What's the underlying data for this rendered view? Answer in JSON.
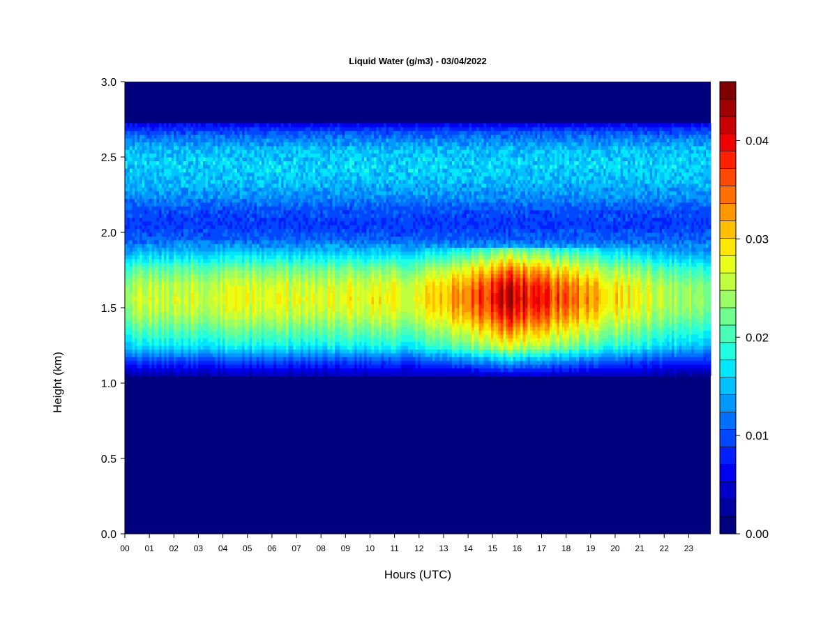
{
  "chart_data": {
    "type": "heatmap",
    "title": "Liquid Water (g/m3) - 03/04/2022",
    "xlabel": "Hours (UTC)",
    "ylabel": "Height (km)",
    "xlim": [
      0,
      23.9
    ],
    "ylim": [
      0,
      3
    ],
    "x_ticks": [
      "00",
      "01",
      "02",
      "03",
      "04",
      "05",
      "06",
      "07",
      "08",
      "09",
      "10",
      "11",
      "12",
      "13",
      "14",
      "15",
      "16",
      "17",
      "18",
      "19",
      "20",
      "21",
      "22",
      "23"
    ],
    "y_ticks": [
      "0.0",
      "0.5",
      "1.0",
      "1.5",
      "2.0",
      "2.5",
      "3.0"
    ],
    "colorbar": {
      "min": 0.0,
      "max": 0.046,
      "levels": 23,
      "ticks": [
        "0.00",
        "0.01",
        "0.02",
        "0.03",
        "0.04"
      ],
      "colors": [
        "#00007F",
        "#00009F",
        "#0000C8",
        "#0000F0",
        "#0020FF",
        "#0048FF",
        "#0070FF",
        "#0098FF",
        "#00C0FF",
        "#00E8FF",
        "#20FFDF",
        "#48FFB7",
        "#70FF8F",
        "#98FF67",
        "#C0FF3F",
        "#E8FF17",
        "#FFE800",
        "#FFC000",
        "#FF9800",
        "#FF7000",
        "#FF4800",
        "#FF2000",
        "#F00000",
        "#C80000",
        "#A00000",
        "#7F0000"
      ]
    },
    "profile_km": [
      1.05,
      1.15,
      1.25,
      1.35,
      1.45,
      1.55,
      1.65,
      1.75,
      1.85,
      1.95,
      2.05,
      2.15,
      2.25,
      2.35,
      2.45,
      2.55,
      2.65,
      2.72
    ],
    "profile_value": [
      0.003,
      0.01,
      0.018,
      0.022,
      0.026,
      0.028,
      0.027,
      0.023,
      0.017,
      0.011,
      0.009,
      0.01,
      0.013,
      0.015,
      0.016,
      0.015,
      0.011,
      0.006
    ],
    "hourly_factor_hours": [
      0,
      1,
      3,
      6,
      9,
      12,
      13,
      14,
      15,
      15.7,
      16,
      17,
      18,
      19,
      20,
      21,
      22,
      23,
      23.9
    ],
    "hourly_factor": [
      0.85,
      0.95,
      0.97,
      0.98,
      1.0,
      1.02,
      1.08,
      1.25,
      1.4,
      1.48,
      1.45,
      1.35,
      1.28,
      1.15,
      1.08,
      1.0,
      0.92,
      0.85,
      0.8
    ],
    "cloud_base_km": 1.05,
    "cloud_top_km": 2.72
  }
}
